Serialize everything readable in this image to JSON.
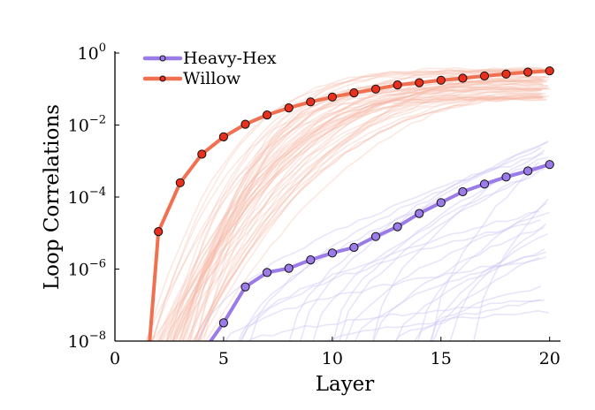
{
  "chart_data": {
    "type": "line",
    "title": "",
    "xlabel": "Layer",
    "ylabel": "Loop Correlations",
    "xlim": [
      0,
      20.5
    ],
    "ylim": [
      1e-08,
      1
    ],
    "yscale": "log",
    "grid": false,
    "legend_position": "top-left",
    "x_ticks": [
      0,
      5,
      10,
      15,
      20
    ],
    "x_tick_labels": [
      "0",
      "5",
      "10",
      "15",
      "20"
    ],
    "y_ticks": [
      1e-08,
      1e-06,
      0.0001,
      0.01,
      1
    ],
    "y_tick_labels": [
      {
        "base": "10",
        "exp": "−8"
      },
      {
        "base": "10",
        "exp": "−6"
      },
      {
        "base": "10",
        "exp": "−4"
      },
      {
        "base": "10",
        "exp": "−2"
      },
      {
        "base": "10",
        "exp": "0"
      }
    ],
    "series": [
      {
        "name": "Heavy-Hex",
        "color": "#9b7be8",
        "x": [
          4.4,
          5,
          6,
          7,
          8,
          9,
          10,
          11,
          12,
          13,
          14,
          15,
          16,
          17,
          18,
          19,
          20
        ],
        "values": [
          1e-08,
          3.2e-08,
          3.2e-07,
          8e-07,
          1.05e-06,
          1.8e-06,
          2.8e-06,
          4e-06,
          8e-06,
          1.5e-05,
          3.5e-05,
          7e-05,
          0.00014,
          0.00023,
          0.00036,
          0.00053,
          0.0008
        ],
        "markers_from_index": 1
      },
      {
        "name": "Willow",
        "color": "#f07050",
        "x": [
          1.6,
          2,
          3,
          4,
          5,
          6,
          7,
          8,
          9,
          10,
          11,
          12,
          13,
          14,
          15,
          16,
          17,
          18,
          19,
          20
        ],
        "values": [
          1e-08,
          1.1e-05,
          0.00025,
          0.00155,
          0.0047,
          0.0105,
          0.019,
          0.03,
          0.044,
          0.06,
          0.078,
          0.1,
          0.13,
          0.15,
          0.175,
          0.2,
          0.23,
          0.26,
          0.295,
          0.32
        ],
        "markers_from_index": 1
      }
    ],
    "background_traces": {
      "heavy_hex_color": "#c8c2f2",
      "willow_color": "#f7b8a4"
    }
  }
}
